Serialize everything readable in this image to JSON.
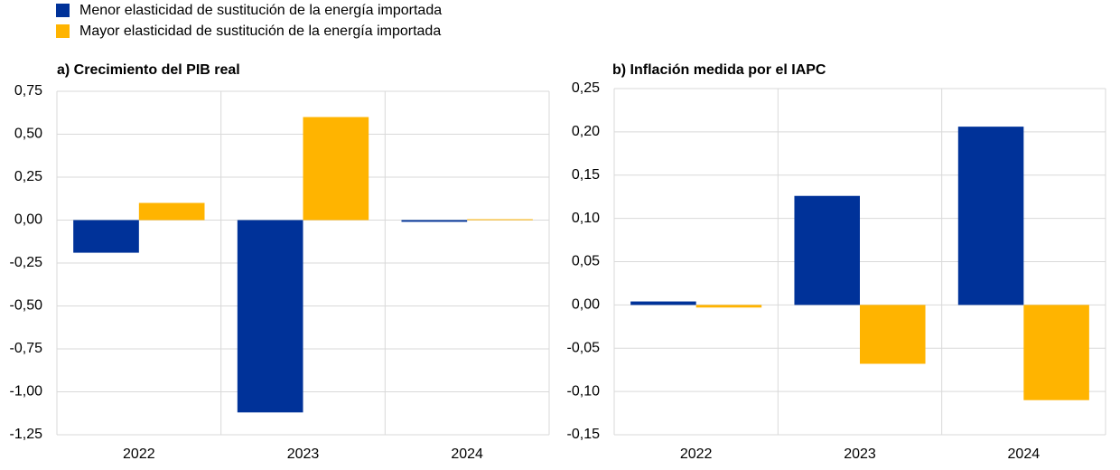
{
  "chart_data": [
    {
      "type": "bar",
      "title": "a) Crecimiento del PIB real",
      "categories": [
        "2022",
        "2023",
        "2024"
      ],
      "series": [
        {
          "name": "Menor elasticidad de sustitución de la energía importada",
          "color": "#003299",
          "values": [
            -0.19,
            -1.12,
            -0.01
          ]
        },
        {
          "name": "Mayor elasticidad de sustitución de la energía importada",
          "color": "#ffb400",
          "values": [
            0.1,
            0.6,
            0.005
          ]
        }
      ],
      "ylim": [
        -1.25,
        0.75
      ],
      "yticks": [
        {
          "value": -1.25,
          "label": "-1,25"
        },
        {
          "value": -1.0,
          "label": "-1,00"
        },
        {
          "value": -0.75,
          "label": "-0,75"
        },
        {
          "value": -0.5,
          "label": "-0,50"
        },
        {
          "value": -0.25,
          "label": "-0,25"
        },
        {
          "value": 0,
          "label": "0,00"
        },
        {
          "value": 0.25,
          "label": "0,25"
        },
        {
          "value": 0.5,
          "label": "0,50"
        },
        {
          "value": 0.75,
          "label": "0,75"
        }
      ],
      "grid": true
    },
    {
      "type": "bar",
      "title": "b) Inflación medida por el IAPC",
      "categories": [
        "2022",
        "2023",
        "2024"
      ],
      "series": [
        {
          "color": "#003299",
          "values": [
            0.004,
            0.126,
            0.206
          ]
        },
        {
          "color": "#ffb400",
          "values": [
            -0.003,
            -0.068,
            -0.11
          ]
        }
      ],
      "ylim": [
        -0.15,
        0.25
      ],
      "yticks": [
        {
          "value": -0.15,
          "label": "-0,15"
        },
        {
          "value": -0.1,
          "label": "-0,10"
        },
        {
          "value": -0.05,
          "label": "-0,05"
        },
        {
          "value": 0,
          "label": "0,00"
        },
        {
          "value": 0.05,
          "label": "0,05"
        },
        {
          "value": 0.1,
          "label": "0,10"
        },
        {
          "value": 0.15,
          "label": "0,15"
        },
        {
          "value": 0.2,
          "label": "0,20"
        },
        {
          "value": 0.25,
          "label": "0,25"
        }
      ],
      "grid": true
    }
  ]
}
